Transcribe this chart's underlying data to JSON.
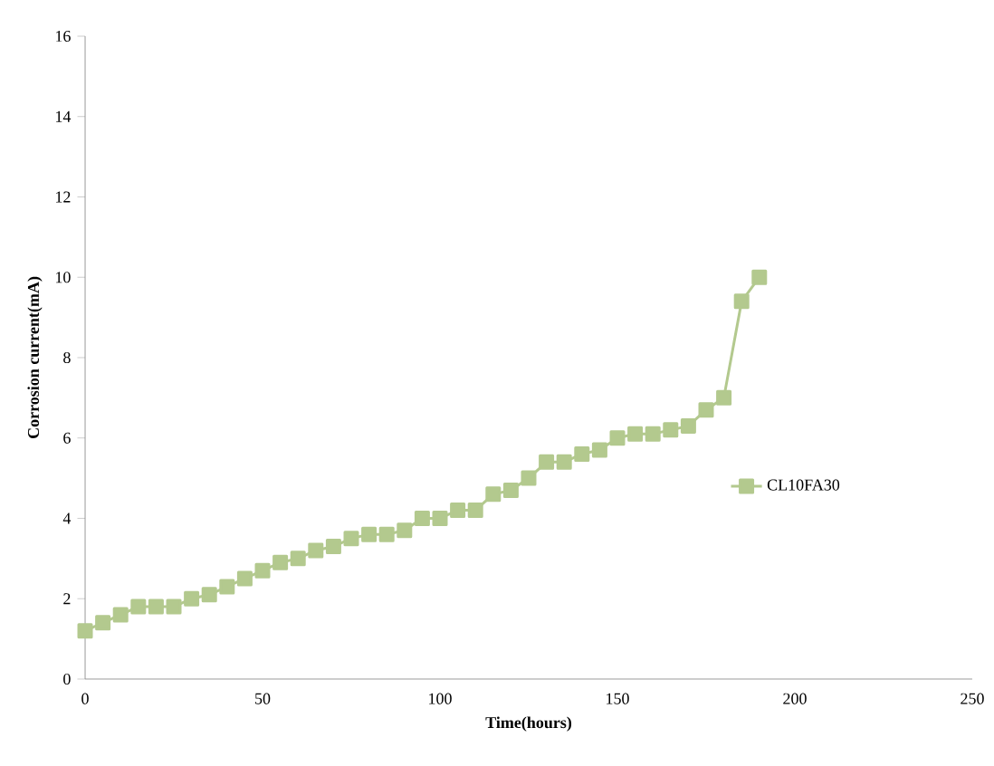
{
  "chart_data": {
    "type": "line",
    "xlabel": "Time(hours)",
    "ylabel": "Corrosion current(mA)",
    "xlim": [
      0,
      250
    ],
    "xticks": [
      0,
      50,
      100,
      150,
      200,
      250
    ],
    "ylim": [
      0,
      16
    ],
    "yticks": [
      0,
      2,
      4,
      6,
      8,
      10,
      12,
      14,
      16
    ],
    "grid": false,
    "legend": "right",
    "marker": "square",
    "line_style": "solid",
    "series": [
      {
        "name": "CL10FA30",
        "color": "#b3c98e",
        "x": [
          0,
          5,
          10,
          15,
          20,
          25,
          30,
          35,
          40,
          45,
          50,
          55,
          60,
          65,
          70,
          75,
          80,
          85,
          90,
          95,
          100,
          105,
          110,
          115,
          120,
          125,
          130,
          135,
          140,
          145,
          150,
          155,
          160,
          165,
          170,
          175,
          180,
          185,
          190
        ],
        "values": [
          1.2,
          1.4,
          1.6,
          1.8,
          1.8,
          1.8,
          2.0,
          2.1,
          2.3,
          2.5,
          2.7,
          2.9,
          3.0,
          3.2,
          3.3,
          3.5,
          3.6,
          3.6,
          3.7,
          4.0,
          4.0,
          4.2,
          4.2,
          4.6,
          4.7,
          5.0,
          5.4,
          5.4,
          5.6,
          5.7,
          6.0,
          6.1,
          6.1,
          6.2,
          6.3,
          6.7,
          7.0,
          9.4,
          10.0
        ]
      }
    ]
  }
}
